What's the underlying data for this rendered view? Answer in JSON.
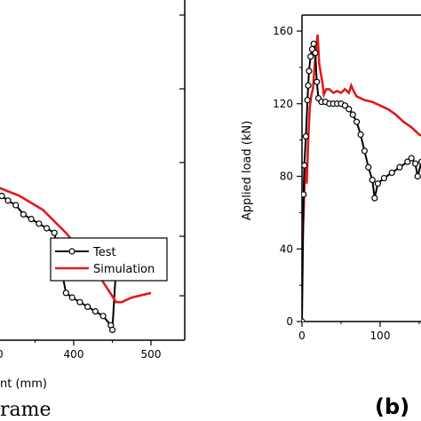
{
  "colors": {
    "test": "#000000",
    "simulation": "#e01b1b"
  },
  "captions": {
    "left": "rame",
    "right_prefix": "(b)"
  },
  "chart_data": [
    {
      "type": "line",
      "panel": "left",
      "xlabel": "nt (mm)",
      "ylabel": "",
      "xlim": [
        300,
        500
      ],
      "x_ticks": [
        "00",
        "400",
        "500"
      ],
      "y_ticks": [],
      "legend": {
        "placement": "bottom-right",
        "entries": [
          "Test",
          "Simulation"
        ]
      },
      "series": [
        {
          "name": "Test",
          "color": "#000000",
          "marker": "circle",
          "points": [
            [
              300,
              53
            ],
            [
              307,
              52
            ],
            [
              315,
              51
            ],
            [
              325,
              50
            ],
            [
              335,
              48
            ],
            [
              345,
              47
            ],
            [
              355,
              46
            ],
            [
              365,
              45
            ],
            [
              375,
              44
            ],
            [
              383,
              37
            ],
            [
              390,
              31
            ],
            [
              398,
              30
            ],
            [
              408,
              29
            ],
            [
              418,
              28
            ],
            [
              428,
              27
            ],
            [
              438,
              26
            ],
            [
              448,
              24
            ],
            [
              450,
              23
            ],
            [
              455,
              37
            ]
          ]
        },
        {
          "name": "Simulation",
          "color": "#e01b1b",
          "points": [
            [
              300,
              54
            ],
            [
              330,
              52
            ],
            [
              360,
              49
            ],
            [
              390,
              44
            ],
            [
              420,
              38
            ],
            [
              455,
              29
            ],
            [
              462,
              29
            ],
            [
              475,
              30
            ],
            [
              500,
              31
            ]
          ]
        }
      ]
    },
    {
      "type": "line",
      "panel": "right",
      "xlabel": "",
      "ylabel": "Applied load (kN)",
      "xlim": [
        0,
        165
      ],
      "ylim": [
        0,
        160
      ],
      "x_ticks": [
        "0",
        "100"
      ],
      "y_ticks": [
        "0",
        "40",
        "80",
        "120",
        "160"
      ],
      "series": [
        {
          "name": "Test",
          "color": "#000000",
          "marker": "circle",
          "points": [
            [
              0,
              0
            ],
            [
              2,
              70
            ],
            [
              3,
              86
            ],
            [
              5,
              102
            ],
            [
              7,
              122
            ],
            [
              8,
              130
            ],
            [
              9,
              138
            ],
            [
              11,
              146
            ],
            [
              13,
              150
            ],
            [
              15,
              153
            ],
            [
              17,
              148
            ],
            [
              19,
              132
            ],
            [
              21,
              123
            ],
            [
              25,
              121
            ],
            [
              30,
              121
            ],
            [
              35,
              120
            ],
            [
              40,
              120
            ],
            [
              45,
              120
            ],
            [
              50,
              120
            ],
            [
              55,
              119
            ],
            [
              60,
              117
            ],
            [
              65,
              114
            ],
            [
              70,
              110
            ],
            [
              75,
              103
            ],
            [
              80,
              94
            ],
            [
              85,
              85
            ],
            [
              90,
              78
            ],
            [
              93,
              68
            ],
            [
              97,
              76
            ],
            [
              105,
              79
            ],
            [
              115,
              82
            ],
            [
              125,
              85
            ],
            [
              135,
              88
            ],
            [
              140,
              90
            ],
            [
              145,
              87
            ],
            [
              148,
              80
            ],
            [
              153,
              88
            ],
            [
              158,
              84
            ],
            [
              163,
              90
            ]
          ]
        },
        {
          "name": "Simulation",
          "color": "#e01b1b",
          "points": [
            [
              0,
              38
            ],
            [
              2,
              60
            ],
            [
              4,
              86
            ],
            [
              6,
              76
            ],
            [
              8,
              100
            ],
            [
              10,
              118
            ],
            [
              12,
              125
            ],
            [
              14,
              128
            ],
            [
              16,
              140
            ],
            [
              18,
              150
            ],
            [
              20,
              158
            ],
            [
              22,
              142
            ],
            [
              24,
              137
            ],
            [
              26,
              132
            ],
            [
              28,
              125
            ],
            [
              31,
              128
            ],
            [
              35,
              128
            ],
            [
              40,
              126
            ],
            [
              45,
              127
            ],
            [
              50,
              126
            ],
            [
              55,
              128
            ],
            [
              60,
              126
            ],
            [
              63,
              130
            ],
            [
              66,
              127
            ],
            [
              70,
              124
            ],
            [
              80,
              122
            ],
            [
              90,
              121
            ],
            [
              100,
              119
            ],
            [
              110,
              117
            ],
            [
              120,
              114
            ],
            [
              130,
              110
            ],
            [
              140,
              107
            ],
            [
              150,
              103
            ],
            [
              160,
              101
            ],
            [
              165,
              100
            ]
          ]
        }
      ]
    }
  ]
}
